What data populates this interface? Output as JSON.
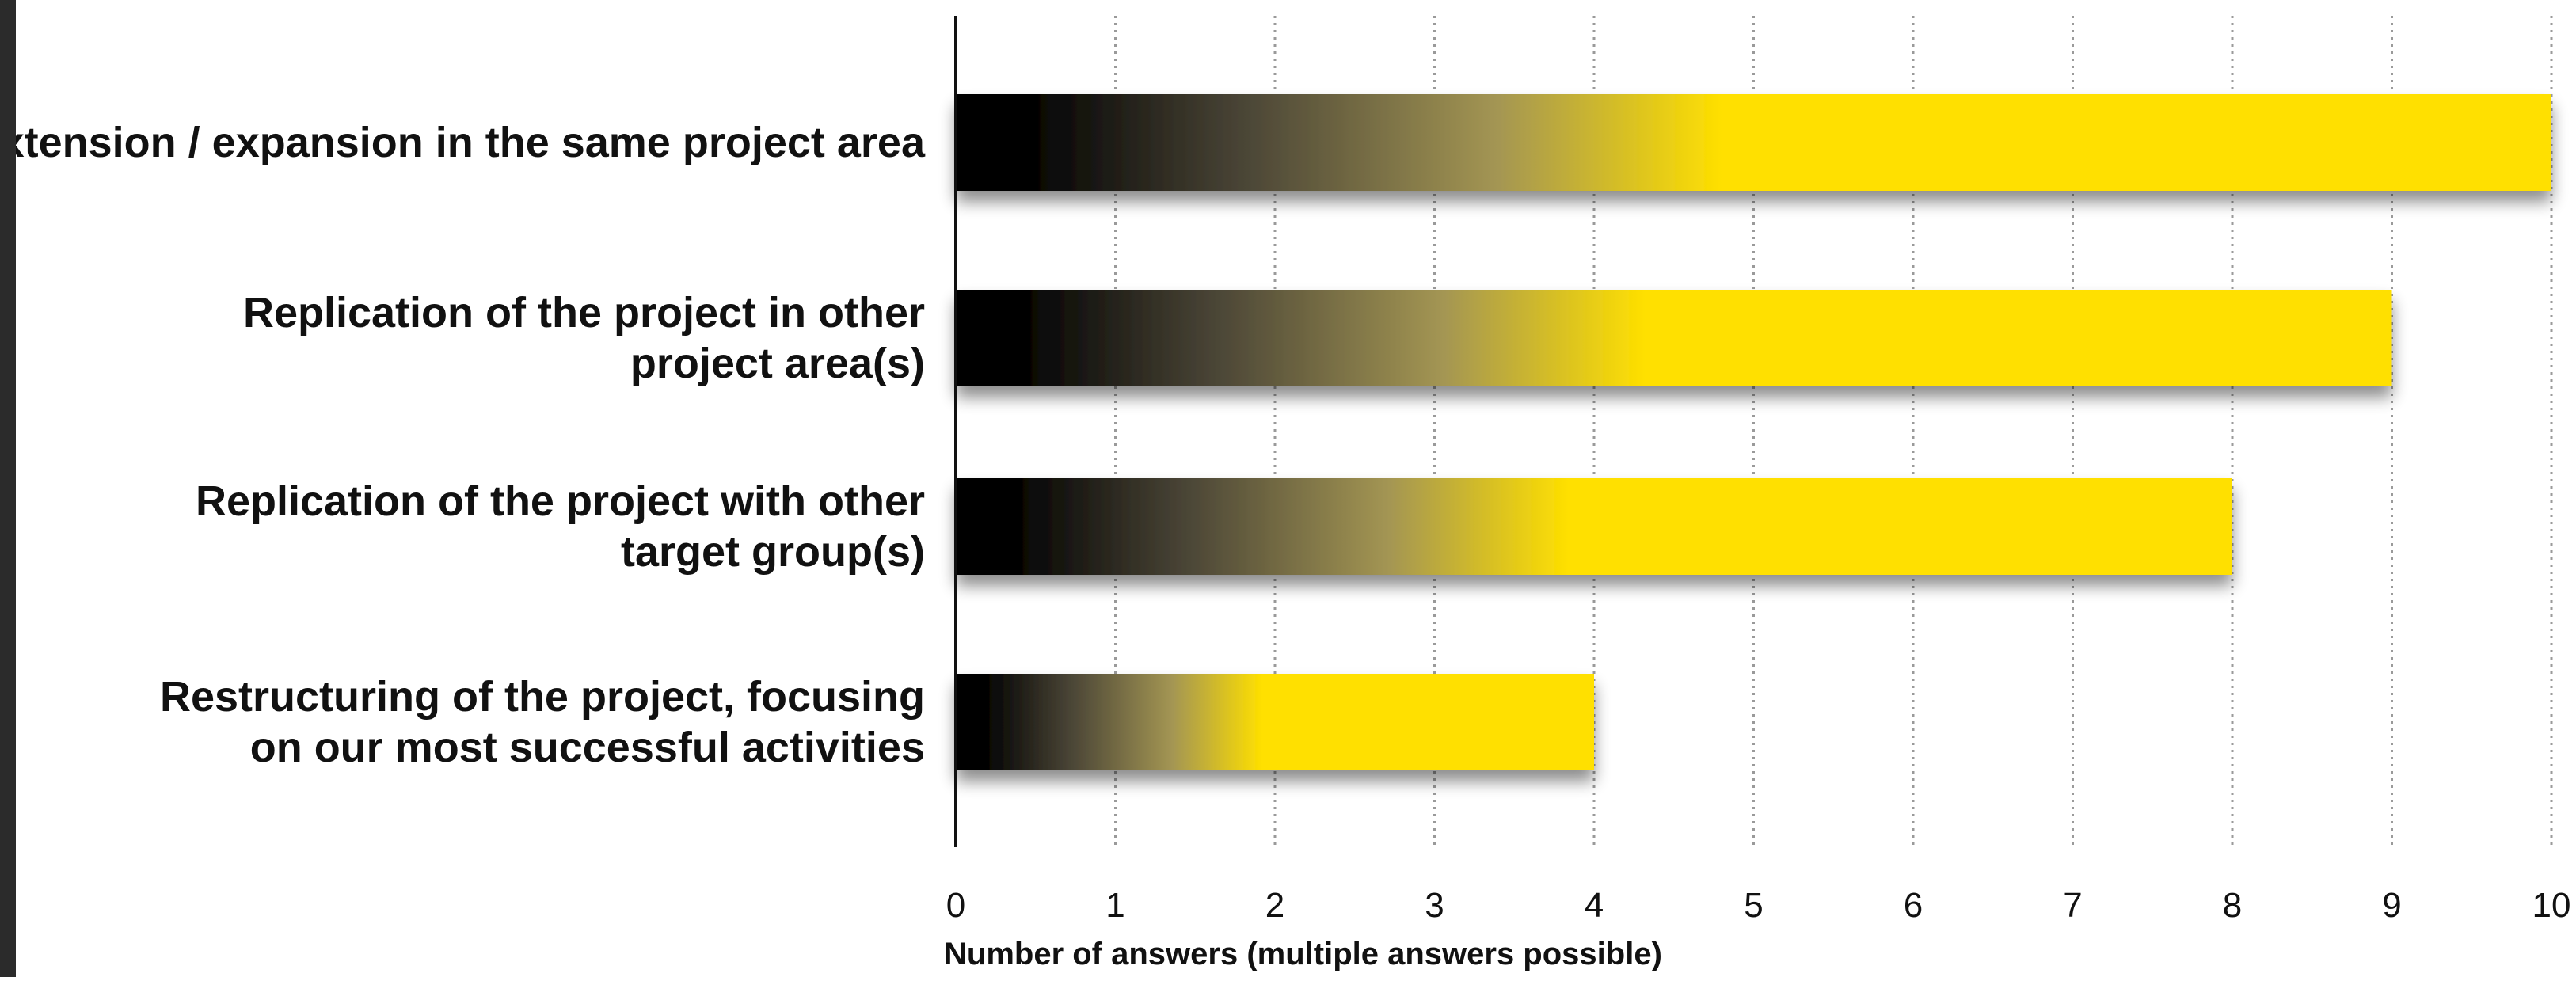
{
  "chart_data": {
    "type": "bar",
    "orientation": "horizontal",
    "categories": [
      [
        "Extension / expansion in the same project area"
      ],
      [
        "Replication of the project in other",
        "project area(s)"
      ],
      [
        "Replication of the project with other",
        "target group(s)"
      ],
      [
        "Restructuring of the project, focusing",
        "on our most successful activities"
      ]
    ],
    "values": [
      10,
      9,
      8,
      4
    ],
    "title": "",
    "xlabel": "Number of answers (multiple answers possible)",
    "ylabel": "",
    "xlim": [
      0,
      10
    ],
    "xticks": [
      "0",
      "1",
      "2",
      "3",
      "4",
      "5",
      "6",
      "7",
      "8",
      "9",
      "10"
    ],
    "grid": "vertical dotted",
    "legend": "none",
    "colors": {
      "bar_start": "#000000",
      "bar_end": "#ffe000",
      "grid": "#9a9a9a",
      "axis": "#111111",
      "text": "#111111",
      "frame_edge": "#2b2b2b"
    }
  }
}
